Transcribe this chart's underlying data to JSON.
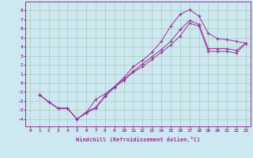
{
  "xlabel": "Windchill (Refroidissement éolien,°C)",
  "ylabel": "",
  "bg_color": "#cde8f0",
  "line_color": "#993399",
  "grid_color": "#aaccbb",
  "xlim": [
    -0.5,
    23.5
  ],
  "ylim": [
    -4.8,
    9.0
  ],
  "xticks": [
    0,
    1,
    2,
    3,
    4,
    5,
    6,
    7,
    8,
    9,
    10,
    11,
    12,
    13,
    14,
    15,
    16,
    17,
    18,
    19,
    20,
    21,
    22,
    23
  ],
  "yticks": [
    -4,
    -3,
    -2,
    -1,
    0,
    1,
    2,
    3,
    4,
    5,
    6,
    7,
    8
  ],
  "line1_x": [
    1,
    2,
    3,
    4,
    5,
    6,
    7,
    8,
    9,
    10,
    11,
    12,
    13,
    14,
    15,
    16,
    17,
    18,
    19,
    20,
    21,
    22,
    23
  ],
  "line1_y": [
    -1.3,
    -2.1,
    -2.8,
    -2.8,
    -4.0,
    -3.2,
    -2.7,
    -1.4,
    -0.4,
    0.6,
    1.8,
    2.5,
    3.4,
    4.6,
    6.3,
    7.6,
    8.1,
    7.4,
    5.5,
    4.9,
    4.8,
    4.6,
    4.4
  ],
  "line2_x": [
    1,
    2,
    3,
    4,
    5,
    6,
    7,
    8,
    9,
    10,
    11,
    12,
    13,
    14,
    15,
    16,
    17,
    18,
    19,
    20,
    21,
    22,
    23
  ],
  "line2_y": [
    -1.3,
    -2.1,
    -2.8,
    -2.8,
    -4.0,
    -3.3,
    -2.8,
    -1.5,
    -0.5,
    0.3,
    1.2,
    1.8,
    2.6,
    3.4,
    4.2,
    5.2,
    6.6,
    6.3,
    3.5,
    3.5,
    3.5,
    3.3,
    4.4
  ],
  "line3_x": [
    1,
    2,
    3,
    4,
    5,
    6,
    7,
    8,
    9,
    10,
    11,
    12,
    13,
    14,
    15,
    16,
    17,
    18,
    19,
    20,
    21,
    22,
    23
  ],
  "line3_y": [
    -1.3,
    -2.1,
    -2.8,
    -2.8,
    -4.0,
    -3.3,
    -1.8,
    -1.2,
    -0.4,
    0.4,
    1.3,
    2.1,
    2.9,
    3.7,
    4.6,
    5.9,
    6.9,
    6.5,
    3.8,
    3.8,
    3.8,
    3.6,
    4.4
  ]
}
